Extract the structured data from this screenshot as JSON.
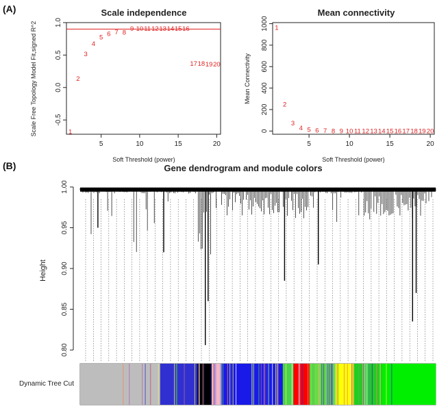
{
  "panels": {
    "a_label": "(A)",
    "b_label": "(B)"
  },
  "colors": {
    "points": "#e02020",
    "cutoff": "#e02020",
    "axis": "#222222",
    "dendro": "#000000"
  },
  "chart_data": [
    {
      "type": "scatter",
      "title": "Scale independence",
      "xlabel": "Soft Threshold (power)",
      "ylabel": "Scale Free Topology Model Fit,signed R^2",
      "xlim": [
        0.5,
        20.5
      ],
      "ylim": [
        -0.72,
        1.0
      ],
      "xticks": [
        5,
        10,
        15,
        20
      ],
      "yticks": [
        -0.5,
        0.0,
        0.5,
        1.0
      ],
      "ytick_labels": [
        "-0.5",
        "0.0",
        "0.5",
        "1.0"
      ],
      "hline": 0.9,
      "x": [
        1,
        2,
        3,
        4,
        5,
        6,
        7,
        8,
        9,
        10,
        11,
        12,
        13,
        14,
        15,
        16,
        17,
        18,
        19,
        20
      ],
      "y": [
        -0.68,
        0.14,
        0.52,
        0.68,
        0.78,
        0.83,
        0.86,
        0.85,
        0.91,
        0.91,
        0.91,
        0.91,
        0.91,
        0.91,
        0.91,
        0.91,
        0.37,
        0.37,
        0.36,
        0.36
      ],
      "labels": [
        "1",
        "2",
        "3",
        "4",
        "5",
        "6",
        "7",
        "8",
        "9",
        "10",
        "11",
        "12",
        "13",
        "14",
        "15",
        "16",
        "17",
        "18",
        "19",
        "20"
      ]
    },
    {
      "type": "scatter",
      "title": "Mean connectivity",
      "xlabel": "Soft Threshold (power)",
      "ylabel": "Mean Connectivity",
      "xlim": [
        0.5,
        20.5
      ],
      "ylim": [
        -30,
        1010
      ],
      "xticks": [
        5,
        10,
        15,
        20
      ],
      "yticks": [
        0,
        200,
        400,
        600,
        800,
        1000
      ],
      "ytick_labels": [
        "0",
        "200",
        "400",
        "600",
        "800",
        "1000"
      ],
      "x": [
        1,
        2,
        3,
        4,
        5,
        6,
        7,
        8,
        9,
        10,
        11,
        12,
        13,
        14,
        15,
        16,
        17,
        18,
        19,
        20
      ],
      "y": [
        965,
        250,
        75,
        30,
        15,
        8,
        5,
        3,
        2,
        1,
        1,
        1,
        1,
        1,
        1,
        1,
        1,
        1,
        1,
        1
      ],
      "labels": [
        "1",
        "2",
        "3",
        "4",
        "5",
        "6",
        "7",
        "8",
        "9",
        "10",
        "11",
        "12",
        "13",
        "14",
        "15",
        "16",
        "17",
        "18",
        "19",
        "20"
      ]
    },
    {
      "type": "dendrogram",
      "title": "Gene dendrogram and module colors",
      "ylabel": "Height",
      "ylim": [
        0.795,
        1.0
      ],
      "yticks": [
        0.8,
        0.85,
        0.9,
        0.95,
        1.0
      ],
      "ytick_labels": [
        "0.80",
        "0.85",
        "0.90",
        "0.95",
        "1.00"
      ],
      "color_bar_label": "Dynamic Tree Cut",
      "module_colors": [
        {
          "color": "#bdbdbd",
          "from": 0.0,
          "to": 0.225
        },
        {
          "color": "#3030d0",
          "from": 0.225,
          "to": 0.33
        },
        {
          "color": "#000000",
          "from": 0.33,
          "to": 0.37
        },
        {
          "color": "#f4b6c8",
          "from": 0.37,
          "to": 0.395
        },
        {
          "color": "#1a1ae8",
          "from": 0.395,
          "to": 0.57
        },
        {
          "color": "#4ad24a",
          "from": 0.57,
          "to": 0.6
        },
        {
          "color": "#ff0000",
          "from": 0.6,
          "to": 0.645
        },
        {
          "color": "#66dd44",
          "from": 0.645,
          "to": 0.72
        },
        {
          "color": "#ffff00",
          "from": 0.72,
          "to": 0.77
        },
        {
          "color": "#22cc22",
          "from": 0.77,
          "to": 0.85
        },
        {
          "color": "#00ee00",
          "from": 0.85,
          "to": 1.0
        }
      ]
    }
  ]
}
